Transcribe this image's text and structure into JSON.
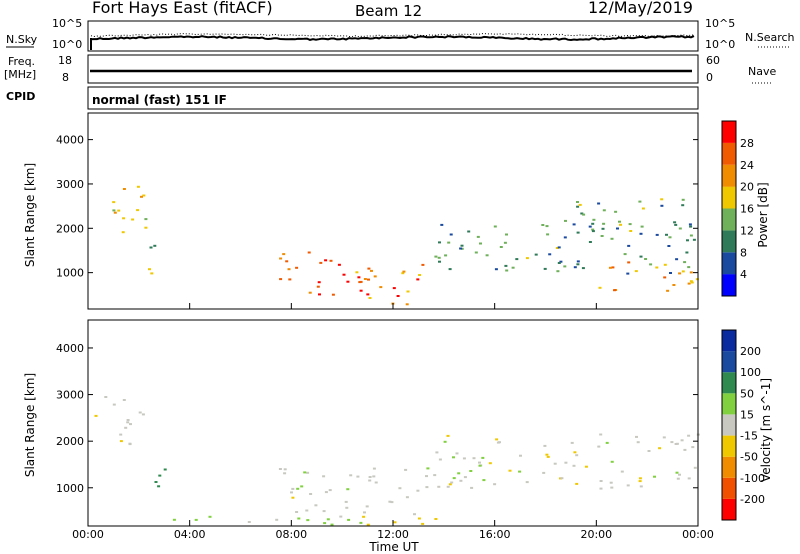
{
  "header": {
    "title": "Fort Hays East (fitACF)",
    "beam": "Beam 12",
    "date": "12/May/2019"
  },
  "top_panels": {
    "sky_label": "N.Sky",
    "sky_ticks": [
      "10^5",
      "10^0"
    ],
    "search_label": "N.Search",
    "search_ticks": [
      "10^5",
      "10^0"
    ],
    "freq_label": "Freq.",
    "freq_unit": "[MHz]",
    "freq_ticks": [
      "18",
      "8"
    ],
    "nave_label": "Nave",
    "nave_ticks": [
      "60",
      "0"
    ],
    "cpid_label": "CPID",
    "cpid_text": "normal (fast) 151 IF"
  },
  "colors": {
    "power_scale": [
      "#0000ff",
      "#1a4aa0",
      "#2f7a58",
      "#6fb05a",
      "#f0c800",
      "#f08c00",
      "#f05a00",
      "#ff0000"
    ],
    "velocity_scale": [
      "#ff0000",
      "#f05000",
      "#f08c00",
      "#f0c800",
      "#c8c8c0",
      "#80d040",
      "#2f8a50",
      "#1a4aa0",
      "#0a2aa0"
    ]
  },
  "chart_data": [
    {
      "type": "heatmap",
      "panel": "power",
      "xlabel": "",
      "ylabel": "Slant Range [km]",
      "x_ticks": [
        "00:00",
        "04:00",
        "08:00",
        "12:00",
        "16:00",
        "20:00",
        "00:00"
      ],
      "y_ticks": [
        "1000",
        "2000",
        "3000",
        "4000"
      ],
      "ylim": [
        180,
        4600
      ],
      "colorbar": {
        "label": "Power [dB]",
        "ticks": [
          "4",
          "8",
          "12",
          "16",
          "20",
          "24",
          "28"
        ],
        "range": [
          0,
          32
        ]
      },
      "regions": [
        {
          "t0": 0.2,
          "t1": 2.3,
          "r0": 1900,
          "r1": 3000,
          "value": 18
        },
        {
          "t0": 2.3,
          "t1": 3.2,
          "r0": 1000,
          "r1": 1700,
          "value": 14
        },
        {
          "t0": 7.5,
          "t1": 11.0,
          "r0": 500,
          "r1": 1500,
          "value": 26
        },
        {
          "t0": 10.0,
          "t1": 13.5,
          "r0": 300,
          "r1": 1200,
          "value": 24
        },
        {
          "t0": 13.5,
          "t1": 24.0,
          "r0": 1000,
          "r1": 2200,
          "value": 11
        },
        {
          "t0": 20.0,
          "t1": 24.0,
          "r0": 600,
          "r1": 1300,
          "value": 22
        },
        {
          "t0": 19.0,
          "t1": 23.5,
          "r0": 1900,
          "r1": 2700,
          "value": 12
        }
      ]
    },
    {
      "type": "heatmap",
      "panel": "velocity",
      "xlabel": "Time UT",
      "ylabel": "Slant Range [km]",
      "x_ticks": [
        "00:00",
        "04:00",
        "08:00",
        "12:00",
        "16:00",
        "20:00",
        "00:00"
      ],
      "y_ticks": [
        "1000",
        "2000",
        "3000",
        "4000"
      ],
      "ylim": [
        180,
        4600
      ],
      "colorbar": {
        "label": "Velocity [m s^-1]",
        "ticks": [
          "-200",
          "-100",
          "-50",
          "-15",
          "15",
          "50",
          "100",
          "200"
        ],
        "range": [
          -250,
          250
        ]
      },
      "regions": [
        {
          "t0": 0.2,
          "t1": 2.3,
          "r0": 1900,
          "r1": 3000,
          "value": 0
        },
        {
          "t0": 2.3,
          "t1": 3.2,
          "r0": 1000,
          "r1": 1700,
          "value": 80
        },
        {
          "t0": 7.5,
          "t1": 13.5,
          "r0": 400,
          "r1": 1500,
          "value": 0
        },
        {
          "t0": 13.5,
          "t1": 24.0,
          "r0": 1000,
          "r1": 2200,
          "value": 0
        },
        {
          "t0": 3.0,
          "t1": 12.0,
          "r0": 180,
          "r1": 400,
          "value": 30
        },
        {
          "t0": 10.0,
          "t1": 14.0,
          "r0": 180,
          "r1": 400,
          "value": -40
        }
      ]
    }
  ]
}
